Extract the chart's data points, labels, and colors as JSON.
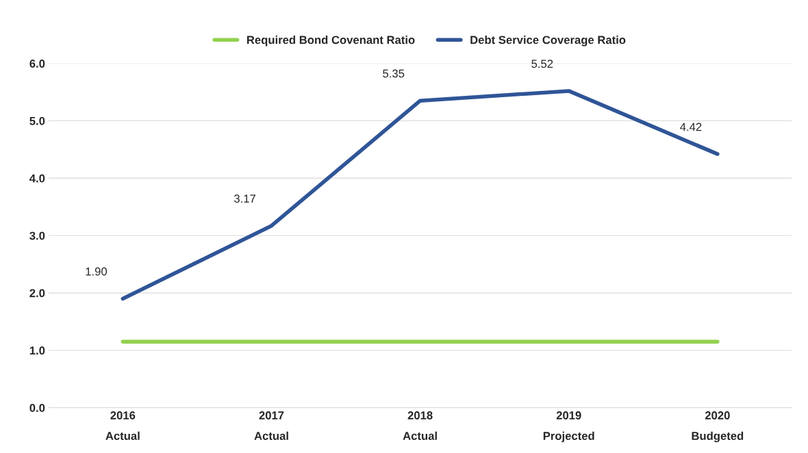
{
  "chart_data": {
    "type": "line",
    "categories": [
      "2016\nActual",
      "2017\nActual",
      "2018\nActual",
      "2019\nProjected",
      "2020\nBudgeted"
    ],
    "series": [
      {
        "name": "Required Bond Covenant Ratio",
        "color": "#92d050",
        "values": [
          1.15,
          1.15,
          1.15,
          1.15,
          1.15
        ]
      },
      {
        "name": "Debt Service Coverage Ratio",
        "color": "#2f5597",
        "values": [
          1.9,
          3.17,
          5.35,
          5.52,
          4.42
        ],
        "value_labels": [
          "1.90",
          "3.17",
          "5.35",
          "5.52",
          "4.42"
        ]
      }
    ],
    "ylim": [
      0,
      6
    ],
    "yticks": [
      {
        "value": 0,
        "label": "0.0"
      },
      {
        "value": 1,
        "label": "1.0"
      },
      {
        "value": 2,
        "label": "2.0"
      },
      {
        "value": 3,
        "label": "3.0"
      },
      {
        "value": 4,
        "label": "4.0"
      },
      {
        "value": 5,
        "label": "5.0"
      },
      {
        "value": 6,
        "label": "6.0"
      }
    ],
    "grid": "y",
    "legend": "top",
    "marker": "none",
    "line_style": "solid"
  }
}
